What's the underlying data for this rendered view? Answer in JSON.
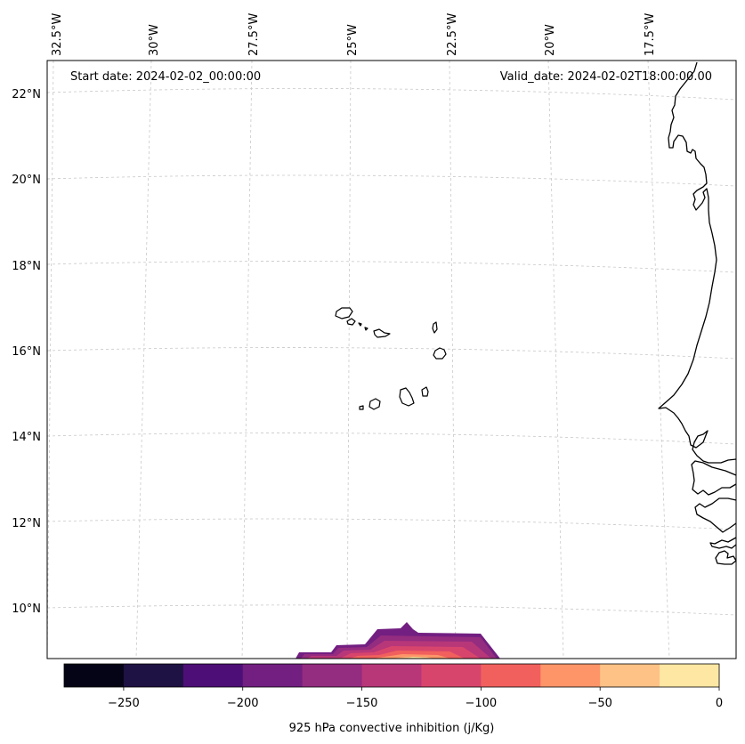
{
  "map": {
    "start_date": "Start date: 2024-02-02_00:00:00",
    "valid_date": "Valid_date: 2024-02-02T18:00:00.00",
    "lon_labels": [
      "32.5°W",
      "30°W",
      "27.5°W",
      "25°W",
      "22.5°W",
      "20°W",
      "17.5°W"
    ],
    "lat_labels": [
      "22°N",
      "20°N",
      "18°N",
      "16°N",
      "14°N",
      "12°N",
      "10°N"
    ],
    "variable": "925 hPa convective inhibition",
    "region": "Cabo Verde and West African coast"
  },
  "colorbar": {
    "label": "925 hPa convective inhibition (j/Kg)",
    "ticks": [
      "−250",
      "−200",
      "−150",
      "−100",
      "−50",
      "0"
    ],
    "levels": [
      -275,
      -250,
      -225,
      -200,
      -175,
      -150,
      -125,
      -100,
      -75,
      -50,
      -25,
      0
    ],
    "colors": [
      "#050416",
      "#1e1143",
      "#4d0f77",
      "#721f81",
      "#942c80",
      "#b73779",
      "#d8456c",
      "#f1605d",
      "#fd9568",
      "#fec286",
      "#fde7a3"
    ]
  }
}
